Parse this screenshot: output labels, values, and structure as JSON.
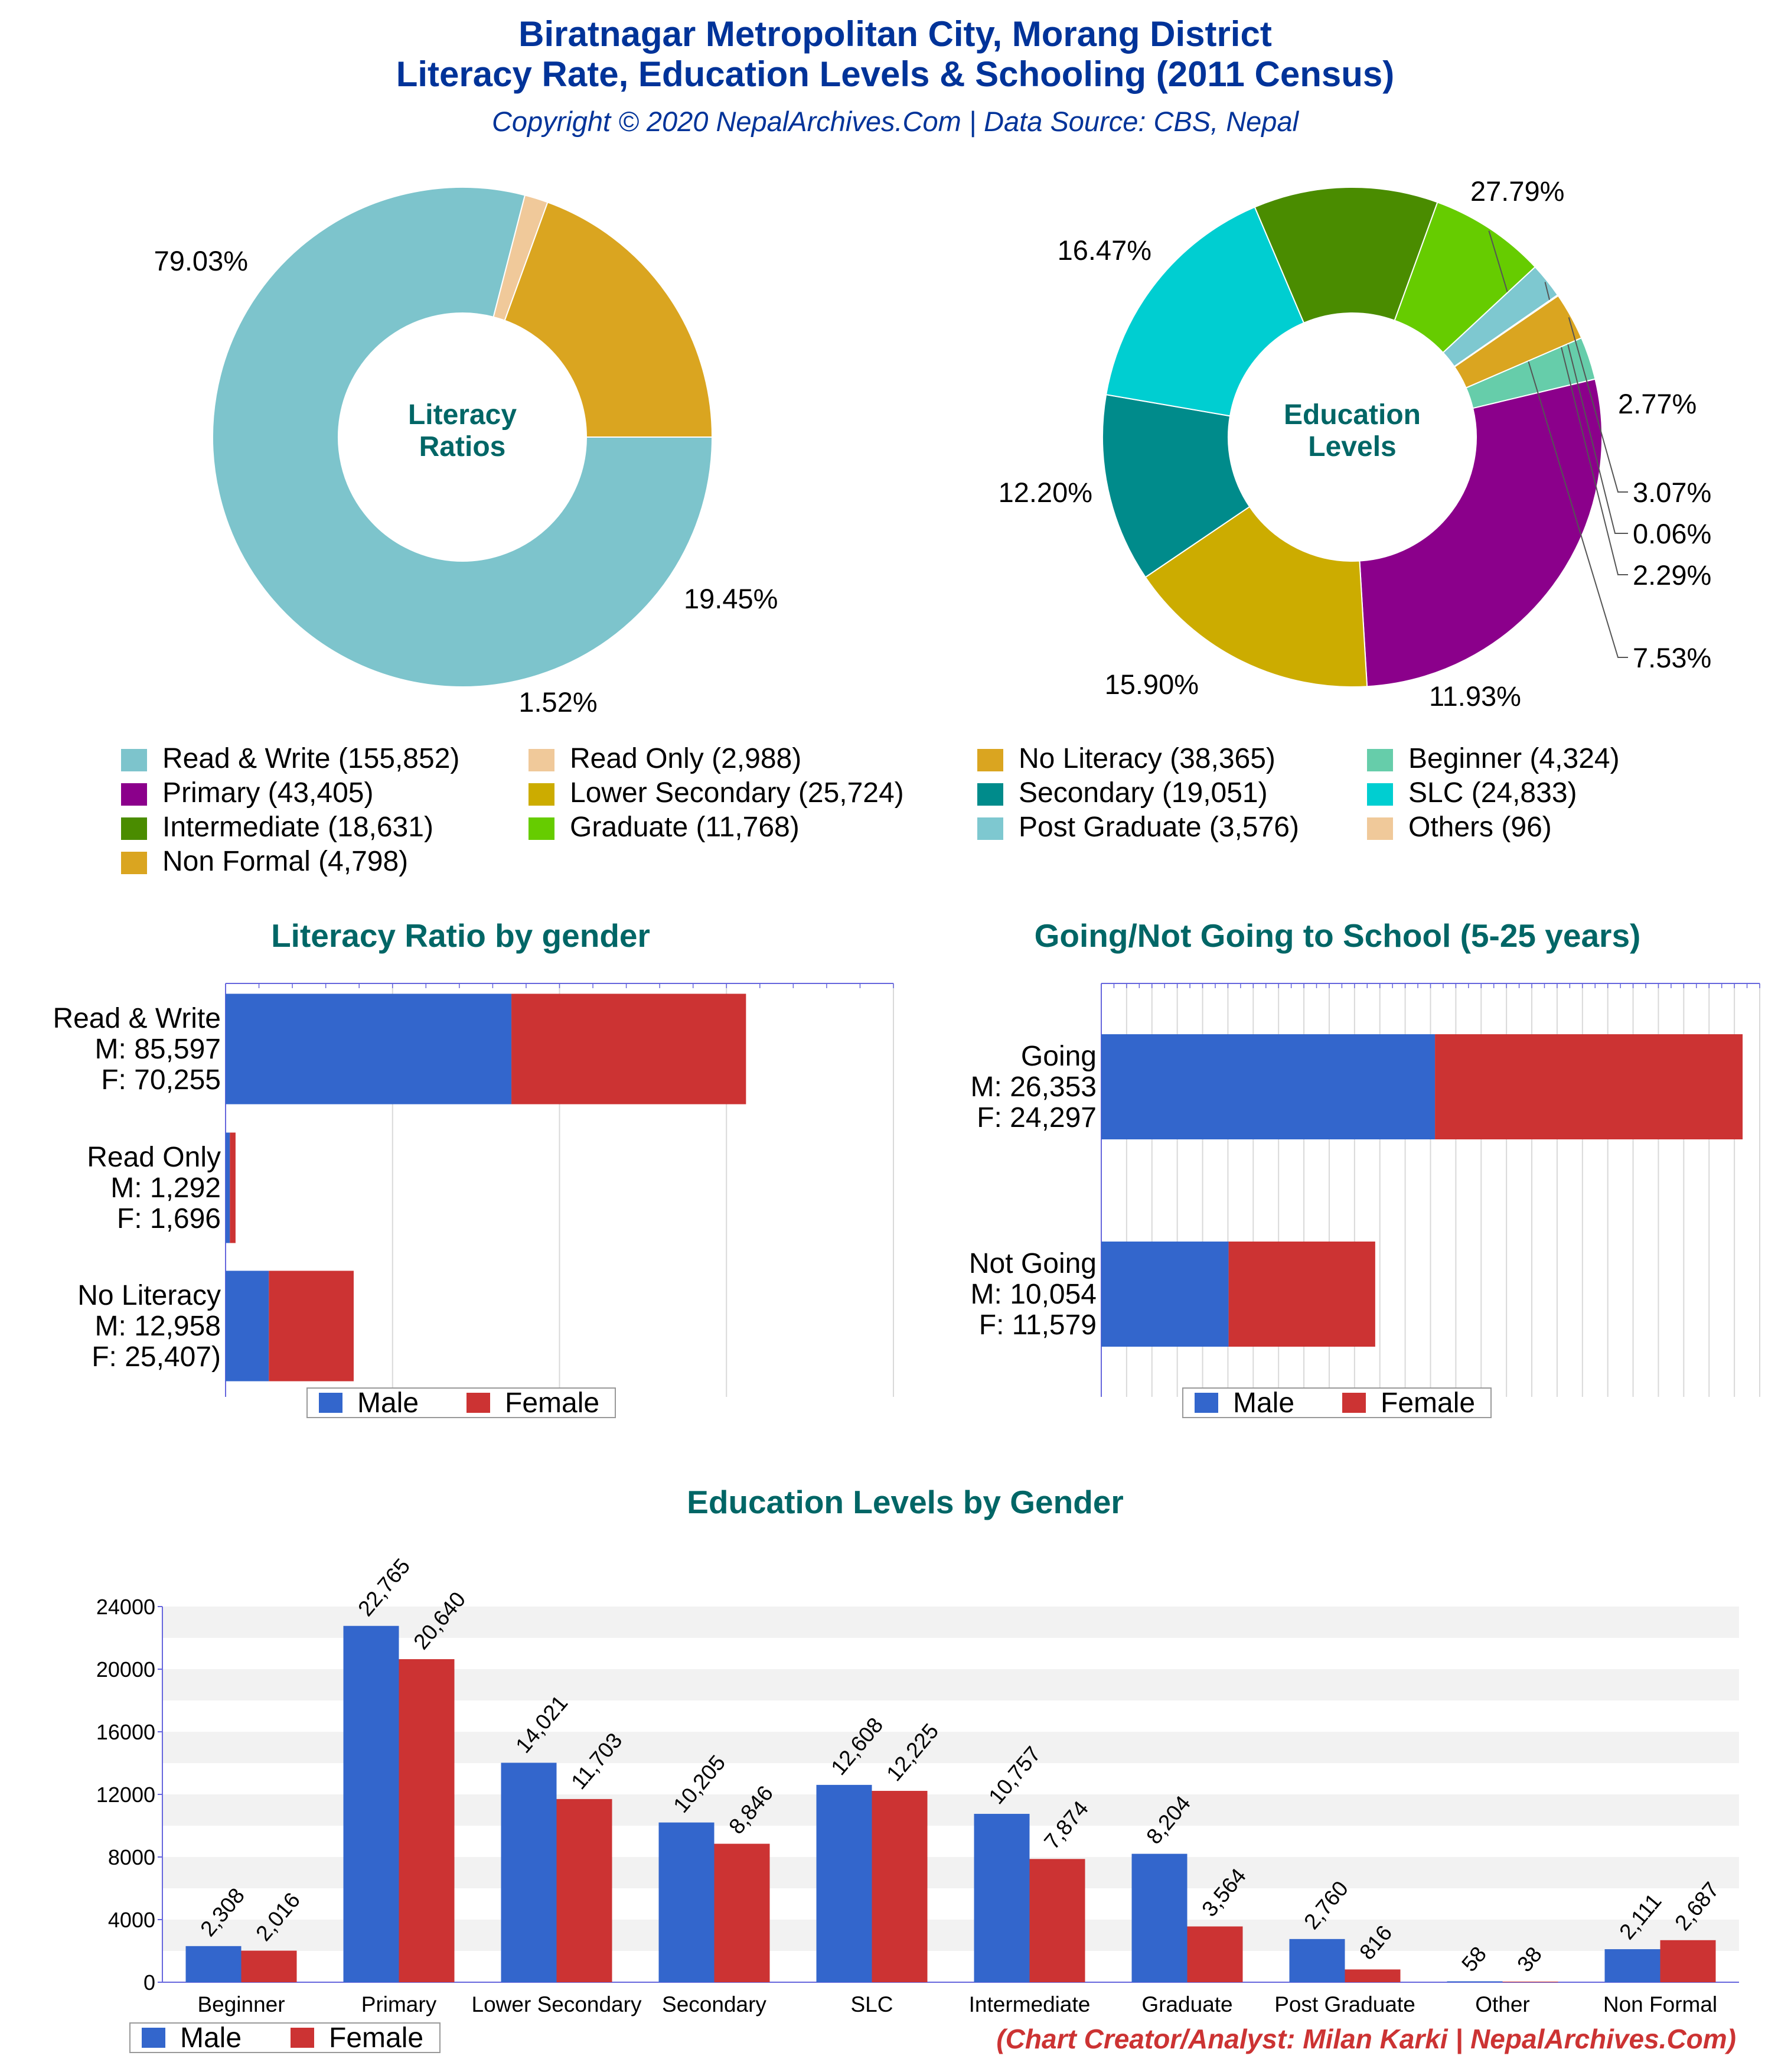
{
  "header": {
    "title_line1": "Biratnagar Metropolitan City, Morang District",
    "title_line2": "Literacy Rate, Education Levels & Schooling (2011 Census)",
    "subtitle": "Copyright © 2020 NepalArchives.Com | Data Source: CBS, Nepal"
  },
  "footer": {
    "credit": "(Chart Creator/Analyst: Milan Karki | NepalArchives.Com)"
  },
  "colors": {
    "title": "#003399",
    "section_title": "#006666",
    "male": "#3366cc",
    "female": "#cc3333",
    "credit": "#cc3333"
  },
  "legend": {
    "items": [
      {
        "label": "Read & Write (155,852)",
        "color": "#7dc4cc"
      },
      {
        "label": "Read Only (2,988)",
        "color": "#f0c99a"
      },
      {
        "label": "No Literacy (38,365)",
        "color": "#daa520"
      },
      {
        "label": "Beginner (4,324)",
        "color": "#66cdaa"
      },
      {
        "label": "Primary (43,405)",
        "color": "#8b008b"
      },
      {
        "label": "Lower Secondary (25,724)",
        "color": "#ccac00"
      },
      {
        "label": "Secondary (19,051)",
        "color": "#008b8b"
      },
      {
        "label": "SLC (24,833)",
        "color": "#00ced1"
      },
      {
        "label": "Intermediate (18,631)",
        "color": "#4a8c00"
      },
      {
        "label": "Graduate (11,768)",
        "color": "#66cc00"
      },
      {
        "label": "Post Graduate (3,576)",
        "color": "#7ec8d0"
      },
      {
        "label": "Others (96)",
        "color": "#f0c99a"
      },
      {
        "label": "Non Formal (4,798)",
        "color": "#daa520"
      }
    ]
  },
  "chart_data": [
    {
      "type": "pie",
      "center_label": [
        "Literacy",
        "Ratios"
      ],
      "slices": [
        {
          "name": "Read & Write",
          "value": 155852,
          "label": "79.03%",
          "color": "#7dc4cc"
        },
        {
          "name": "Read Only",
          "value": 2988,
          "label": "1.52%",
          "color": "#f0c99a"
        },
        {
          "name": "No Literacy",
          "value": 38365,
          "label": "19.45%",
          "color": "#daa520"
        }
      ]
    },
    {
      "type": "pie",
      "center_label": [
        "Education",
        "Levels"
      ],
      "slices": [
        {
          "name": "Beginner",
          "value": 4324,
          "label": "2.77%",
          "color": "#66cdaa"
        },
        {
          "name": "Primary",
          "value": 43405,
          "label": "27.79%",
          "color": "#8b008b"
        },
        {
          "name": "Lower Secondary",
          "value": 25724,
          "label": "16.47%",
          "color": "#ccac00"
        },
        {
          "name": "Secondary",
          "value": 19051,
          "label": "12.20%",
          "color": "#008b8b"
        },
        {
          "name": "SLC",
          "value": 24833,
          "label": "15.90%",
          "color": "#00ced1"
        },
        {
          "name": "Intermediate",
          "value": 18631,
          "label": "11.93%",
          "color": "#4a8c00"
        },
        {
          "name": "Graduate",
          "value": 11768,
          "label": "7.53%",
          "color": "#66cc00"
        },
        {
          "name": "Post Graduate",
          "value": 3576,
          "label": "2.29%",
          "color": "#7ec8d0"
        },
        {
          "name": "Others",
          "value": 96,
          "label": "0.06%",
          "color": "#f0c99a"
        },
        {
          "name": "Non Formal",
          "value": 4798,
          "label": "3.07%",
          "color": "#daa520"
        }
      ]
    },
    {
      "type": "bar",
      "orientation": "horizontal",
      "stacked": true,
      "title": "Literacy Ratio by gender",
      "categories": [
        [
          "Read & Write",
          "M: 85,597",
          "F: 70,255"
        ],
        [
          "Read Only",
          "M: 1,292",
          "F: 1,696"
        ],
        [
          "No Literacy",
          "M: 12,958",
          "F: 25,407)"
        ]
      ],
      "series": [
        {
          "name": "Male",
          "values": [
            85597,
            1292,
            12958
          ]
        },
        {
          "name": "Female",
          "values": [
            70255,
            1696,
            25407
          ]
        }
      ],
      "xlim": [
        0,
        200000
      ],
      "grid": true,
      "legend": "bottom"
    },
    {
      "type": "bar",
      "orientation": "horizontal",
      "stacked": true,
      "title": "Going/Not Going to School (5-25 years)",
      "categories": [
        [
          "Going",
          "M: 26,353",
          "F: 24,297"
        ],
        [
          "Not Going",
          "M: 10,054",
          "F: 11,579"
        ]
      ],
      "series": [
        {
          "name": "Male",
          "values": [
            26353,
            10054
          ]
        },
        {
          "name": "Female",
          "values": [
            24297,
            11579
          ]
        }
      ],
      "xlim": [
        0,
        52000
      ],
      "grid": true,
      "legend": "bottom"
    },
    {
      "type": "bar",
      "title": "Education Levels by Gender",
      "categories": [
        "Beginner",
        "Primary",
        "Lower Secondary",
        "Secondary",
        "SLC",
        "Intermediate",
        "Graduate",
        "Post Graduate",
        "Other",
        "Non Formal"
      ],
      "series": [
        {
          "name": "Male",
          "values": [
            2308,
            22765,
            14021,
            10205,
            12608,
            10757,
            8204,
            2760,
            58,
            2111
          ]
        },
        {
          "name": "Female",
          "values": [
            2016,
            20640,
            11703,
            8846,
            12225,
            7874,
            3564,
            816,
            38,
            2687
          ]
        }
      ],
      "value_labels": {
        "Male": [
          "2,308",
          "22,765",
          "14,021",
          "10,205",
          "12,608",
          "10,757",
          "8,204",
          "2,760",
          "58",
          "2,111"
        ],
        "Female": [
          "2,016",
          "20,640",
          "11,703",
          "8,846",
          "12,225",
          "7,874",
          "3,564",
          "816",
          "38",
          "2,687"
        ]
      },
      "yticks": [
        "0",
        "4000",
        "8000",
        "12000",
        "16000",
        "20000",
        "24000"
      ],
      "ylim": [
        0,
        24000
      ],
      "grid": true,
      "legend": "bottom-left"
    }
  ]
}
